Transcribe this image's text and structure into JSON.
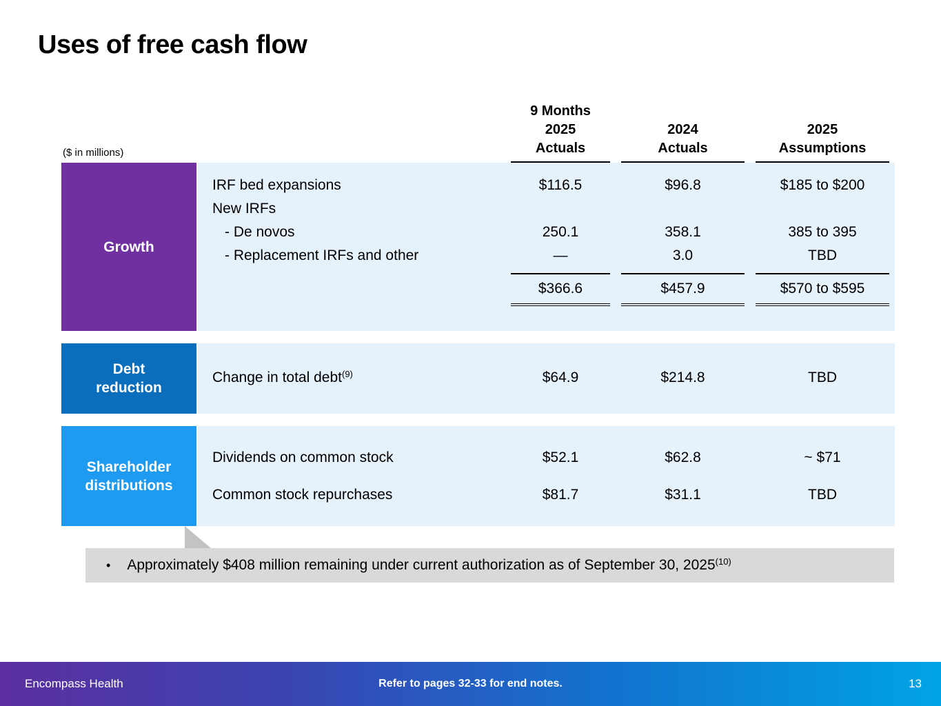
{
  "slide_title": "Uses of free cash flow",
  "units_note": "($ in millions)",
  "columns": {
    "c1": {
      "l1": "9 Months",
      "l2": "2025",
      "l3": "Actuals"
    },
    "c2": {
      "l1": "2024",
      "l2": "Actuals"
    },
    "c3": {
      "l1": "2025",
      "l2": "Assumptions"
    }
  },
  "growth": {
    "label": "Growth",
    "rows": [
      {
        "label": "IRF bed expansions",
        "c1": "$116.5",
        "c2": "$96.8",
        "c3": "$185 to $200"
      },
      {
        "label": "New IRFs",
        "c1": "",
        "c2": "",
        "c3": ""
      },
      {
        "label": "- De novos",
        "c1": "250.1",
        "c2": "358.1",
        "c3": "385 to 395"
      },
      {
        "label": "- Replacement IRFs and other",
        "c1": "—",
        "c2": "3.0",
        "c3": "TBD"
      }
    ],
    "total": {
      "c1": "$366.6",
      "c2": "$457.9",
      "c3": "$570 to $595"
    }
  },
  "debt": {
    "label_l1": "Debt",
    "label_l2": "reduction",
    "row": {
      "label": "Change in total debt",
      "sup": "(9)",
      "c1": "$64.9",
      "c2": "$214.8",
      "c3": "TBD"
    }
  },
  "shareholder": {
    "label_l1": "Shareholder",
    "label_l2": "distributions",
    "rows": [
      {
        "label": "Dividends on common stock",
        "c1": "$52.1",
        "c2": "$62.8",
        "c3": "~ $71"
      },
      {
        "label": "Common stock repurchases",
        "c1": "$81.7",
        "c2": "$31.1",
        "c3": "TBD"
      }
    ]
  },
  "callout": {
    "bullet": "•",
    "text": "Approximately $408 million remaining under current authorization as of September 30, 2025",
    "sup": "(10)"
  },
  "footer": {
    "brand": "Encompass Health",
    "note": "Refer to pages 32-33 for end notes.",
    "page": "13"
  },
  "colors": {
    "growth_box": "#7030A0",
    "debt_box": "#0A6EBD",
    "shareholder_box": "#1E9BF0",
    "row_bg": "#E6F2FB",
    "callout_bg": "#D9D9D9"
  }
}
